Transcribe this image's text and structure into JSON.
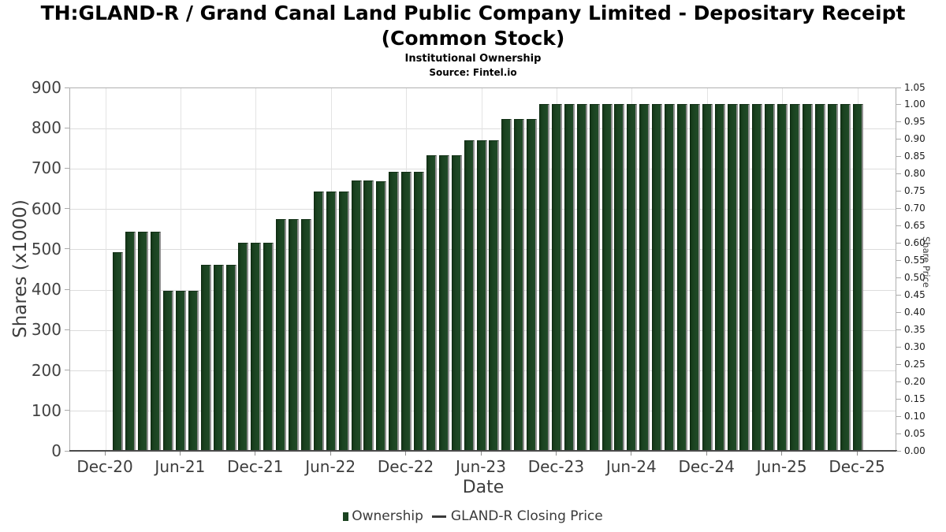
{
  "header": {
    "title_lines": [
      "TH:GLAND-R / Grand Canal Land Public Company Limited - Depositary Receipt",
      "(Common Stock)"
    ],
    "subtitle": "Institutional Ownership",
    "source": "Source: Fintel.io"
  },
  "chart_data": {
    "type": "bar",
    "title": "TH:GLAND-R / Grand Canal Land Public Company Limited - Depositary Receipt (Common Stock)",
    "subtitle": "Institutional Ownership",
    "source": "Source: Fintel.io",
    "xlabel": "Date",
    "ylabel_left": "Shares (x1000)",
    "ylabel_right": "Share Price",
    "ylim_left": [
      0,
      900
    ],
    "ylim_right": [
      0.0,
      1.05
    ],
    "grid": true,
    "legend_position": "bottom",
    "x_ticks": [
      "Dec-20",
      "Jun-21",
      "Dec-21",
      "Jun-22",
      "Dec-22",
      "Jun-23",
      "Dec-23",
      "Jun-24",
      "Dec-24",
      "Jun-25",
      "Dec-25"
    ],
    "y_ticks_left": [
      "0",
      "100",
      "200",
      "300",
      "400",
      "500",
      "600",
      "700",
      "800",
      "900"
    ],
    "y_ticks_right": [
      "0.00",
      "0.05",
      "0.10",
      "0.15",
      "0.20",
      "0.25",
      "0.30",
      "0.35",
      "0.40",
      "0.45",
      "0.50",
      "0.55",
      "0.60",
      "0.65",
      "0.70",
      "0.75",
      "0.80",
      "0.85",
      "0.90",
      "0.95",
      "1.00",
      "1.05"
    ],
    "x": [
      "Jan-21",
      "Feb-21",
      "Mar-21",
      "Apr-21",
      "May-21",
      "Jun-21",
      "Jul-21",
      "Aug-21",
      "Sep-21",
      "Oct-21",
      "Nov-21",
      "Dec-21",
      "Jan-22",
      "Feb-22",
      "Mar-22",
      "Apr-22",
      "May-22",
      "Jun-22",
      "Jul-22",
      "Aug-22",
      "Sep-22",
      "Oct-22",
      "Nov-22",
      "Dec-22",
      "Jan-23",
      "Feb-23",
      "Mar-23",
      "Apr-23",
      "May-23",
      "Jun-23",
      "Jul-23",
      "Aug-23",
      "Sep-23",
      "Oct-23",
      "Nov-23",
      "Dec-23",
      "Jan-24",
      "Feb-24",
      "Mar-24",
      "Apr-24",
      "May-24",
      "Jun-24",
      "Jul-24",
      "Aug-24",
      "Sep-24",
      "Oct-24",
      "Nov-24",
      "Dec-24",
      "Jan-25",
      "Feb-25",
      "Mar-25",
      "Apr-25",
      "May-25",
      "Jun-25",
      "Jul-25",
      "Aug-25",
      "Sep-25",
      "Oct-25",
      "Nov-25",
      "Dec-25"
    ],
    "series": [
      {
        "name": "Ownership",
        "type": "bar",
        "axis": "left",
        "color": "#1b4321",
        "values": [
          490,
          540,
          540,
          540,
          395,
          395,
          395,
          458,
          458,
          458,
          513,
          513,
          513,
          572,
          572,
          572,
          640,
          640,
          640,
          668,
          668,
          665,
          690,
          690,
          690,
          730,
          730,
          730,
          768,
          768,
          768,
          820,
          820,
          820,
          858,
          858,
          858,
          858,
          858,
          858,
          858,
          858,
          858,
          858,
          858,
          858,
          858,
          858,
          858,
          858,
          858,
          858,
          858,
          858,
          858,
          858,
          858,
          858,
          858,
          858
        ]
      },
      {
        "name": "GLAND-R Closing Price",
        "type": "line",
        "axis": "right",
        "color": "#3a3a3a",
        "values": []
      }
    ]
  },
  "legend": {
    "items": [
      {
        "label": "Ownership",
        "swatch": "square",
        "color": "#1b4321"
      },
      {
        "label": "GLAND-R Closing Price",
        "swatch": "line",
        "color": "#3a3a3a"
      }
    ]
  }
}
